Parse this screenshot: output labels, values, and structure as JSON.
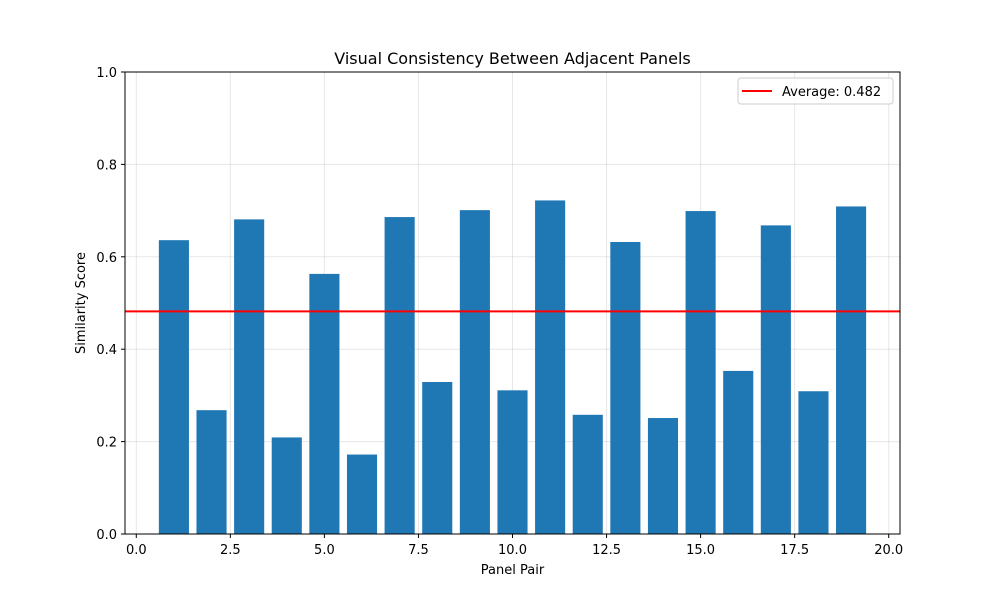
{
  "chart_data": {
    "type": "bar",
    "title": "Visual Consistency Between Adjacent Panels",
    "xlabel": "Panel Pair",
    "ylabel": "Similarity Score",
    "xlim": [
      -0.3,
      20.3
    ],
    "ylim": [
      0,
      1.0
    ],
    "xticks": [
      0,
      2.5,
      5,
      7.5,
      10,
      12.5,
      15,
      17.5,
      20
    ],
    "xtick_labels": [
      "0.0",
      "2.5",
      "5.0",
      "7.5",
      "10.0",
      "12.5",
      "15.0",
      "17.5",
      "20.0"
    ],
    "yticks": [
      0,
      0.2,
      0.4,
      0.6,
      0.8,
      1.0
    ],
    "ytick_labels": [
      "0.0",
      "0.2",
      "0.4",
      "0.6",
      "0.8",
      "1.0"
    ],
    "grid": true,
    "bar_width": 0.8,
    "x": [
      1,
      2,
      3,
      4,
      5,
      6,
      7,
      8,
      9,
      10,
      11,
      12,
      13,
      14,
      15,
      16,
      17,
      18,
      19
    ],
    "values": [
      0.636,
      0.268,
      0.681,
      0.209,
      0.563,
      0.172,
      0.686,
      0.329,
      0.701,
      0.311,
      0.722,
      0.258,
      0.632,
      0.251,
      0.699,
      0.353,
      0.668,
      0.309,
      0.709
    ],
    "bar_color": "#1f77b4",
    "average": {
      "value": 0.482,
      "label": "Average: 0.482",
      "color": "#ff0000"
    },
    "legend_position": "top-right"
  }
}
